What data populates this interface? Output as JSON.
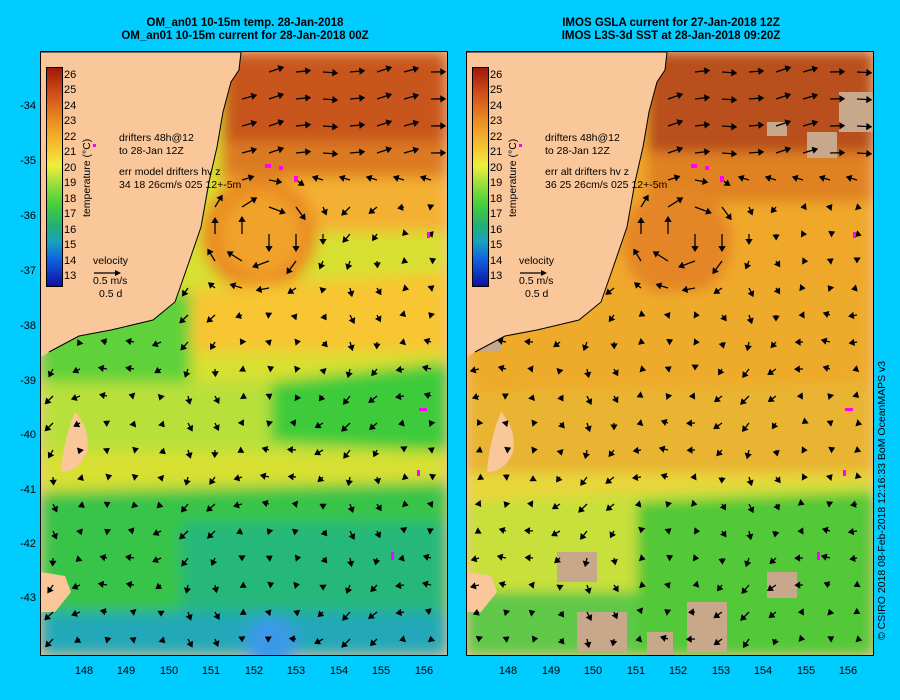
{
  "colors": {
    "background": "#00ccff",
    "land": "#f9c79a",
    "arrows": "#000000",
    "drifter": "#ff00ff",
    "missing": "#c8a88a"
  },
  "left_panel": {
    "title_line1": "OM_an01 10-15m temp. 28-Jan-2018",
    "title_line2": "OM_an01 10-15m current for 28-Jan-2018 00Z",
    "legend_drifters_1": "drifters 48h@12",
    "legend_drifters_2": "to 28-Jan 12Z",
    "legend_err_1": "err model drifters hv z",
    "legend_err_2": "34 18 26cm/s 025 12+-5m",
    "velocity_label": "velocity",
    "velocity_scale": "0.5 m/s",
    "velocity_time": "0.5 d"
  },
  "right_panel": {
    "title_line1": "IMOS GSLA current for 27-Jan-2018 12Z",
    "title_line2": "IMOS L3S-3d SST at 28-Jan-2018 09:20Z",
    "legend_drifters_1": "drifters 48h@12",
    "legend_drifters_2": "to 28-Jan 12Z",
    "legend_err_1": "err alt drifters hv z",
    "legend_err_2": "36 25 26cm/s 025 12+-5m",
    "velocity_label": "velocity",
    "velocity_scale": "0.5 m/s",
    "velocity_time": "0.5 d"
  },
  "colorbar": {
    "title": "temperature (°C)",
    "ticks": [
      "26",
      "25",
      "24",
      "23",
      "22",
      "21",
      "20",
      "19",
      "18",
      "17",
      "16",
      "15",
      "14",
      "13"
    ]
  },
  "y_ticks": [
    "-34",
    "-35",
    "-36",
    "-37",
    "-38",
    "-39",
    "-40",
    "-41",
    "-42",
    "-43"
  ],
  "x_ticks": [
    "148",
    "149",
    "150",
    "151",
    "152",
    "153",
    "154",
    "155",
    "156"
  ],
  "credit": "© CSIRO 2018   08-Feb-2018 12:16:33 BoM OceanMAPS v3"
}
